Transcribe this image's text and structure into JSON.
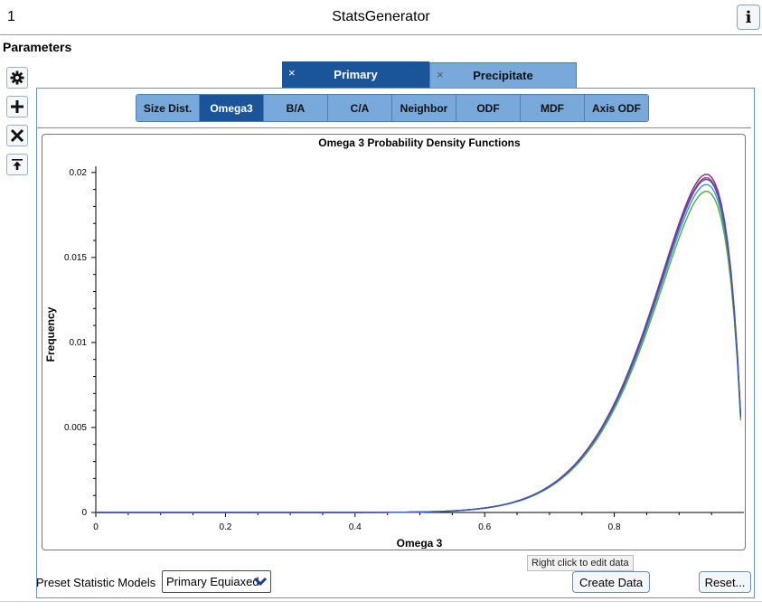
{
  "window": {
    "index": "1",
    "title": "StatsGenerator",
    "info_icon": "info-icon"
  },
  "parameters_label": "Parameters",
  "tools": [
    {
      "name": "settings-gear-icon"
    },
    {
      "name": "add-plus-icon"
    },
    {
      "name": "delete-x-icon"
    },
    {
      "name": "upload-arrow-icon"
    }
  ],
  "phase_tabs": [
    {
      "label": "Primary",
      "close": "×",
      "active": true
    },
    {
      "label": "Precipitate",
      "close": "×",
      "active": false
    }
  ],
  "sub_tabs": [
    {
      "label": "Size Dist.",
      "active": false
    },
    {
      "label": "Omega3",
      "active": true
    },
    {
      "label": "B/A",
      "active": false
    },
    {
      "label": "C/A",
      "active": false
    },
    {
      "label": "Neighbor",
      "active": false
    },
    {
      "label": "ODF",
      "active": false
    },
    {
      "label": "MDF",
      "active": false
    },
    {
      "label": "Axis ODF",
      "active": false
    }
  ],
  "chart_data": {
    "type": "line",
    "title": "Omega 3 Probability Density Functions",
    "xlabel": "Omega 3",
    "ylabel": "Frequency",
    "xlim": [
      0,
      1
    ],
    "ylim": [
      0,
      0.021
    ],
    "x_ticks": [
      "0",
      "0.2",
      "0.4",
      "0.6",
      "0.8"
    ],
    "y_ticks": [
      "0",
      "0.005",
      "0.01",
      "0.015",
      "0.02"
    ],
    "grid": false,
    "series": [
      {
        "color": "#7b2d8e",
        "beta_peak": 0.0199
      },
      {
        "color": "#c0305a",
        "beta_peak": 0.0197
      },
      {
        "color": "#3aa0b8",
        "beta_peak": 0.0193
      },
      {
        "color": "#5aaa3a",
        "beta_peak": 0.0189
      },
      {
        "color": "#3a52c8",
        "beta_peak": 0.0196
      }
    ],
    "x_peak": 0.94
  },
  "preset": {
    "label": "Preset Statistic Models",
    "value": "Primary Equiaxed"
  },
  "tooltip": "Right click to edit data",
  "buttons": {
    "create": "Create Data",
    "reset": "Reset..."
  }
}
